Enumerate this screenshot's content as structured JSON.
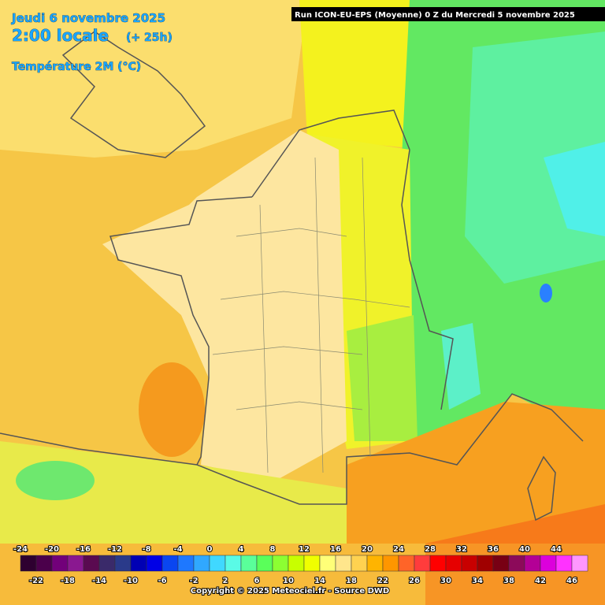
{
  "header": {
    "date": "Jeudi 6 novembre 2025",
    "time": "2:00 locale",
    "lead": "(+ 25h)",
    "parameter": "Température 2M (°C)",
    "run": "Run ICON-EU-EPS (Moyenne) 0 Z du Mercredi 5 novembre 2025"
  },
  "legend": {
    "labels": [
      -24,
      -22,
      -20,
      -18,
      -16,
      -14,
      -12,
      -10,
      -8,
      -6,
      -4,
      -2,
      0,
      2,
      4,
      6,
      8,
      10,
      12,
      14,
      16,
      18,
      20,
      22,
      24,
      26,
      28,
      30,
      32,
      34,
      36,
      38,
      40,
      42,
      44,
      46
    ],
    "colors": [
      "#2e0030",
      "#4b004b",
      "#72007a",
      "#8a1890",
      "#5a0a50",
      "#3a2a6a",
      "#2a3a8a",
      "#0000b4",
      "#0000e6",
      "#0a46f0",
      "#1e78ff",
      "#30a8ff",
      "#40d8ff",
      "#5afae6",
      "#5aff9a",
      "#5aff5a",
      "#8cff32",
      "#c8ff00",
      "#f0ff00",
      "#ffff78",
      "#ffe68c",
      "#ffd250",
      "#ffb400",
      "#ff9600",
      "#ff6428",
      "#ff3c3c",
      "#ff0000",
      "#e60000",
      "#c80000",
      "#a00000",
      "#780014",
      "#8c0a5a",
      "#b40096",
      "#dc00dc",
      "#ff32ff",
      "#ff96ff"
    ]
  },
  "footer": {
    "copyright": "Copyright © 2025 Meteociel.fr - Source DWD"
  }
}
